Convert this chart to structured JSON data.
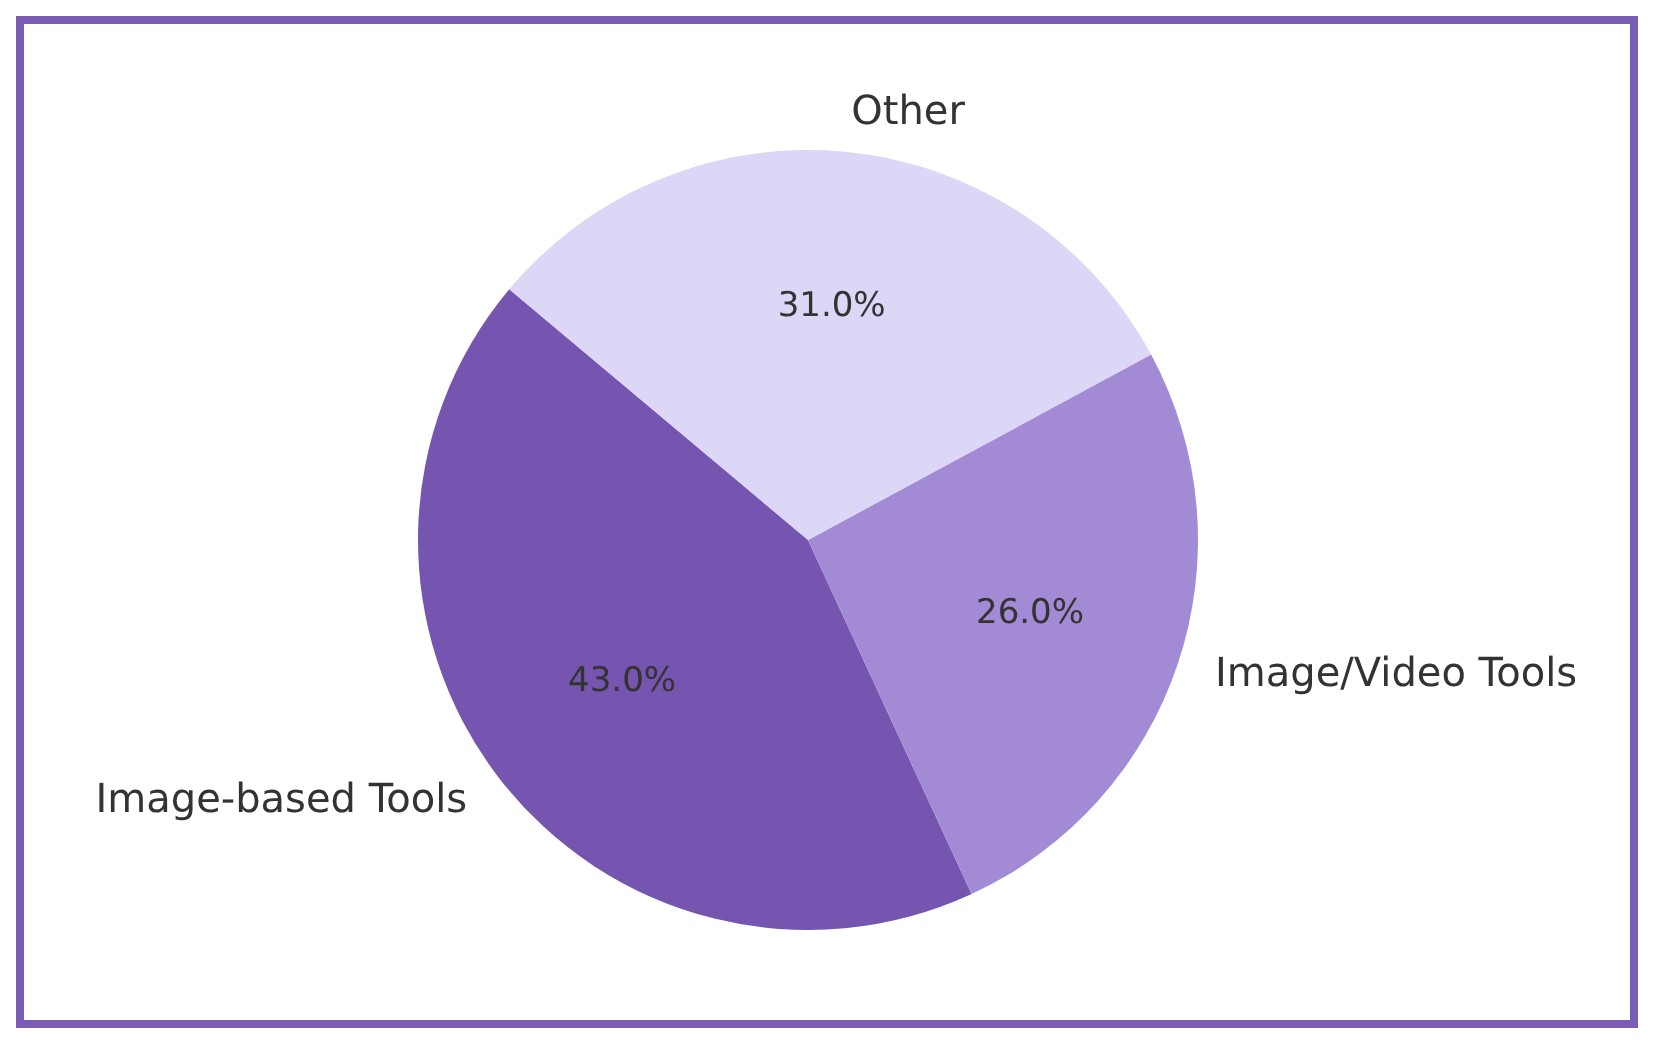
{
  "chart_data": {
    "type": "pie",
    "categories": [
      "Image-based Tools",
      "Image/Video Tools",
      "Other"
    ],
    "values": [
      43.0,
      26.0,
      31.0
    ],
    "colors": [
      "#7655b0",
      "#a28bd4",
      "#dcd6f7"
    ],
    "value_labels": [
      "43.0%",
      "26.0%",
      "31.0%"
    ]
  }
}
